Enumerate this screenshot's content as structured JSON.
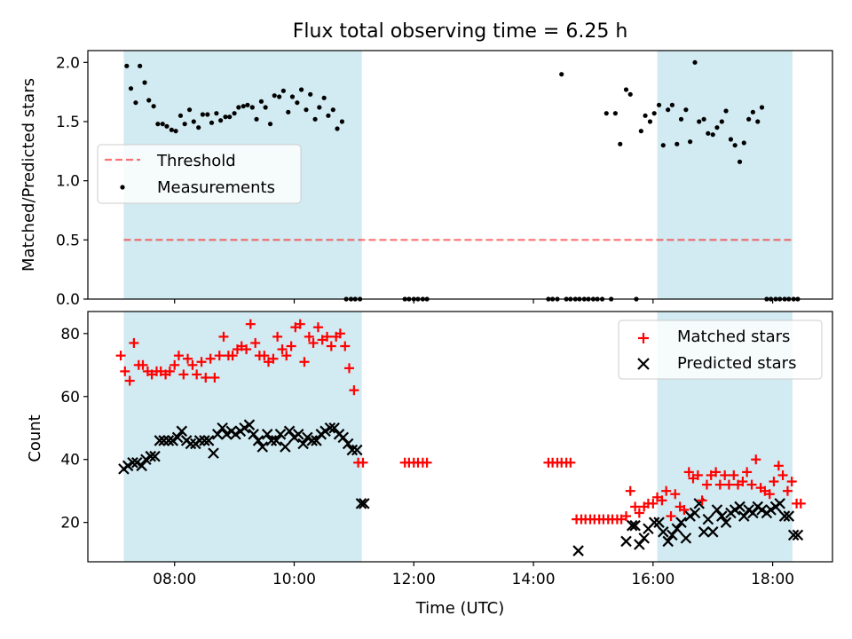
{
  "title": "Flux total observing time = 6.25 h",
  "colors": {
    "shade": "#add8e6",
    "threshold": "#ff0000",
    "measurement": "#000000",
    "matched": "#ff0000",
    "predicted": "#000000"
  },
  "chart_data": [
    {
      "type": "scatter",
      "ylabel": "Matched/Predicted stars",
      "xlim": [
        6.55,
        19.0
      ],
      "ylim": [
        0.0,
        2.1
      ],
      "yticks": [
        0.0,
        0.5,
        1.0,
        1.5,
        2.0
      ],
      "ytick_labels": [
        "0.0",
        "0.5",
        "1.0",
        "1.5",
        "2.0"
      ],
      "legend": {
        "placement": "center-left",
        "entries": [
          "Threshold",
          "Measurements"
        ]
      },
      "shaded_intervals": [
        [
          7.15,
          11.13
        ],
        [
          16.07,
          18.33
        ]
      ],
      "threshold": {
        "name": "Threshold",
        "y": 0.5,
        "x_range": [
          7.15,
          18.33
        ],
        "style": "dashed"
      },
      "measurements": {
        "name": "Measurements",
        "x": [
          7.2,
          7.27,
          7.35,
          7.42,
          7.5,
          7.57,
          7.65,
          7.72,
          7.8,
          7.87,
          7.95,
          8.02,
          8.1,
          8.17,
          8.25,
          8.32,
          8.4,
          8.47,
          8.55,
          8.62,
          8.7,
          8.77,
          8.85,
          8.92,
          9.0,
          9.07,
          9.15,
          9.22,
          9.3,
          9.37,
          9.45,
          9.52,
          9.6,
          9.67,
          9.75,
          9.82,
          9.9,
          9.97,
          10.05,
          10.12,
          10.2,
          10.27,
          10.35,
          10.42,
          10.5,
          10.57,
          10.65,
          10.72,
          10.8,
          10.87,
          10.95,
          11.02,
          11.1,
          11.85,
          11.92,
          12.0,
          12.07,
          12.15,
          12.22,
          14.25,
          14.32,
          14.4,
          14.47,
          14.55,
          14.62,
          14.7,
          14.77,
          14.85,
          14.92,
          15.0,
          15.07,
          15.15,
          15.22,
          15.3,
          15.37,
          15.45,
          15.55,
          15.62,
          15.72,
          15.8,
          15.87,
          15.95,
          16.02,
          16.1,
          16.17,
          16.25,
          16.32,
          16.4,
          16.47,
          16.55,
          16.62,
          16.7,
          16.77,
          16.85,
          16.92,
          17.0,
          17.07,
          17.15,
          17.22,
          17.3,
          17.37,
          17.45,
          17.52,
          17.6,
          17.67,
          17.75,
          17.82,
          17.9,
          17.97,
          18.05,
          18.12,
          18.2,
          18.27,
          18.35,
          18.42
        ],
        "y": [
          1.97,
          1.78,
          1.66,
          1.97,
          1.83,
          1.68,
          1.63,
          1.48,
          1.48,
          1.46,
          1.43,
          1.42,
          1.55,
          1.48,
          1.6,
          1.5,
          1.45,
          1.56,
          1.56,
          1.49,
          1.57,
          1.51,
          1.54,
          1.54,
          1.57,
          1.62,
          1.63,
          1.64,
          1.62,
          1.52,
          1.67,
          1.62,
          1.48,
          1.72,
          1.71,
          1.76,
          1.58,
          1.71,
          1.66,
          1.77,
          1.6,
          1.73,
          1.52,
          1.62,
          1.7,
          1.55,
          1.6,
          1.44,
          1.5,
          0.0,
          0.0,
          0.0,
          0.0,
          0.0,
          0.0,
          0.0,
          0.0,
          0.0,
          0.0,
          0.0,
          0.0,
          0.0,
          1.9,
          0.0,
          0.0,
          0.0,
          0.0,
          0.0,
          0.0,
          0.0,
          0.0,
          0.0,
          1.57,
          0.0,
          1.57,
          1.31,
          1.77,
          1.73,
          0.0,
          1.42,
          1.55,
          1.5,
          1.57,
          1.64,
          1.3,
          1.6,
          1.64,
          1.31,
          1.52,
          1.6,
          1.33,
          2.0,
          1.5,
          1.52,
          1.4,
          1.39,
          1.45,
          1.5,
          1.59,
          1.35,
          1.3,
          1.16,
          1.32,
          1.52,
          1.58,
          1.5,
          1.62,
          0.0,
          0.0,
          0.0,
          0.0,
          0.0,
          0.0,
          0.0,
          0.0
        ]
      }
    },
    {
      "type": "scatter",
      "xlabel": "Time (UTC)",
      "ylabel": "Count",
      "xlim": [
        6.55,
        19.0
      ],
      "ylim": [
        7.5,
        87.0
      ],
      "yticks": [
        20,
        40,
        60,
        80
      ],
      "ytick_labels": [
        "20",
        "40",
        "60",
        "80"
      ],
      "xticks": [
        8,
        10,
        12,
        14,
        16,
        18
      ],
      "xtick_labels": [
        "08:00",
        "10:00",
        "12:00",
        "14:00",
        "16:00",
        "18:00"
      ],
      "legend": {
        "placement": "top-right",
        "entries": [
          "Matched stars",
          "Predicted stars"
        ]
      },
      "shaded_intervals": [
        [
          7.15,
          11.13
        ],
        [
          16.07,
          18.33
        ]
      ],
      "series": [
        {
          "name": "Matched stars",
          "marker": "plus",
          "x": [
            7.1,
            7.17,
            7.25,
            7.32,
            7.4,
            7.47,
            7.55,
            7.62,
            7.7,
            7.77,
            7.85,
            7.92,
            8.0,
            8.07,
            8.15,
            8.22,
            8.3,
            8.37,
            8.45,
            8.52,
            8.6,
            8.67,
            8.75,
            8.82,
            8.9,
            8.97,
            9.05,
            9.12,
            9.2,
            9.27,
            9.35,
            9.42,
            9.5,
            9.57,
            9.65,
            9.72,
            9.8,
            9.87,
            9.95,
            10.02,
            10.1,
            10.17,
            10.25,
            10.32,
            10.4,
            10.47,
            10.55,
            10.62,
            10.7,
            10.77,
            10.85,
            10.92,
            11.0,
            11.07,
            11.15,
            11.85,
            11.92,
            12.0,
            12.07,
            12.15,
            12.22,
            14.25,
            14.32,
            14.4,
            14.47,
            14.55,
            14.62,
            14.72,
            14.8,
            14.87,
            14.95,
            15.02,
            15.1,
            15.17,
            15.25,
            15.32,
            15.4,
            15.47,
            15.55,
            15.62,
            15.7,
            15.77,
            15.85,
            15.92,
            16.0,
            16.07,
            16.15,
            16.22,
            16.3,
            16.37,
            16.45,
            16.52,
            16.6,
            16.67,
            16.75,
            16.82,
            16.9,
            16.97,
            17.05,
            17.12,
            17.2,
            17.27,
            17.35,
            17.42,
            17.5,
            17.57,
            17.65,
            17.72,
            17.8,
            17.87,
            17.95,
            18.02,
            18.1,
            18.17,
            18.25,
            18.32,
            18.4,
            18.47
          ],
          "y": [
            73,
            68,
            65,
            77,
            70,
            70,
            68,
            67,
            68,
            68,
            67,
            68,
            70,
            73,
            67,
            72,
            70,
            67,
            71,
            66,
            72,
            66,
            73,
            79,
            73,
            73,
            75,
            76,
            75,
            83,
            77,
            73,
            73,
            71,
            72,
            79,
            75,
            73,
            76,
            82,
            83,
            71,
            79,
            77,
            82,
            78,
            79,
            76,
            79,
            80,
            76,
            69,
            62,
            39,
            39,
            39,
            39,
            39,
            39,
            39,
            39,
            39,
            39,
            39,
            39,
            39,
            39,
            21,
            21,
            21,
            21,
            21,
            21,
            21,
            21,
            21,
            21,
            21,
            22,
            30,
            25,
            23,
            25,
            26,
            26,
            28,
            27,
            30,
            22,
            29,
            25,
            24,
            36,
            34,
            35,
            27,
            32,
            35,
            36,
            32,
            35,
            32,
            35,
            32,
            33,
            36,
            32,
            40,
            31,
            30,
            29,
            33,
            38,
            35,
            30,
            33,
            26,
            26
          ]
        },
        {
          "name": "Predicted stars",
          "marker": "x",
          "x": [
            7.15,
            7.22,
            7.3,
            7.37,
            7.45,
            7.52,
            7.6,
            7.67,
            7.75,
            7.82,
            7.9,
            7.97,
            8.05,
            8.12,
            8.2,
            8.27,
            8.35,
            8.42,
            8.5,
            8.57,
            8.65,
            8.72,
            8.8,
            8.87,
            8.95,
            9.02,
            9.1,
            9.17,
            9.25,
            9.32,
            9.4,
            9.47,
            9.55,
            9.62,
            9.7,
            9.77,
            9.85,
            9.92,
            10.0,
            10.07,
            10.15,
            10.22,
            10.3,
            10.37,
            10.45,
            10.52,
            10.6,
            10.67,
            10.75,
            10.82,
            10.9,
            10.97,
            11.05,
            11.12,
            11.17,
            14.75,
            15.55,
            15.65,
            15.7,
            15.77,
            15.85,
            15.92,
            16.02,
            16.1,
            16.17,
            16.25,
            16.32,
            16.4,
            16.47,
            16.55,
            16.62,
            16.7,
            16.77,
            16.85,
            16.92,
            17.0,
            17.07,
            17.15,
            17.22,
            17.3,
            17.37,
            17.45,
            17.52,
            17.6,
            17.67,
            17.75,
            17.82,
            17.9,
            17.97,
            18.05,
            18.12,
            18.2,
            18.27,
            18.35,
            18.42
          ],
          "y": [
            37,
            38,
            39,
            39,
            38,
            40,
            41,
            41,
            46,
            46,
            46,
            46,
            47,
            49,
            46,
            45,
            45,
            46,
            46,
            46,
            42,
            48,
            50,
            48,
            49,
            48,
            49,
            50,
            51,
            48,
            46,
            44,
            48,
            46,
            46,
            48,
            44,
            49,
            47,
            48,
            45,
            47,
            46,
            46,
            48,
            49,
            50,
            50,
            48,
            47,
            45,
            43,
            43,
            26,
            26,
            11,
            14,
            19,
            19,
            13,
            15,
            18,
            20,
            20,
            17,
            14,
            16,
            18,
            20,
            15,
            22,
            23,
            26,
            17,
            21,
            17,
            24,
            22,
            20,
            23,
            24,
            25,
            22,
            24,
            23,
            25,
            24,
            23,
            24,
            25,
            26,
            22,
            22,
            16,
            16
          ]
        }
      ]
    }
  ]
}
